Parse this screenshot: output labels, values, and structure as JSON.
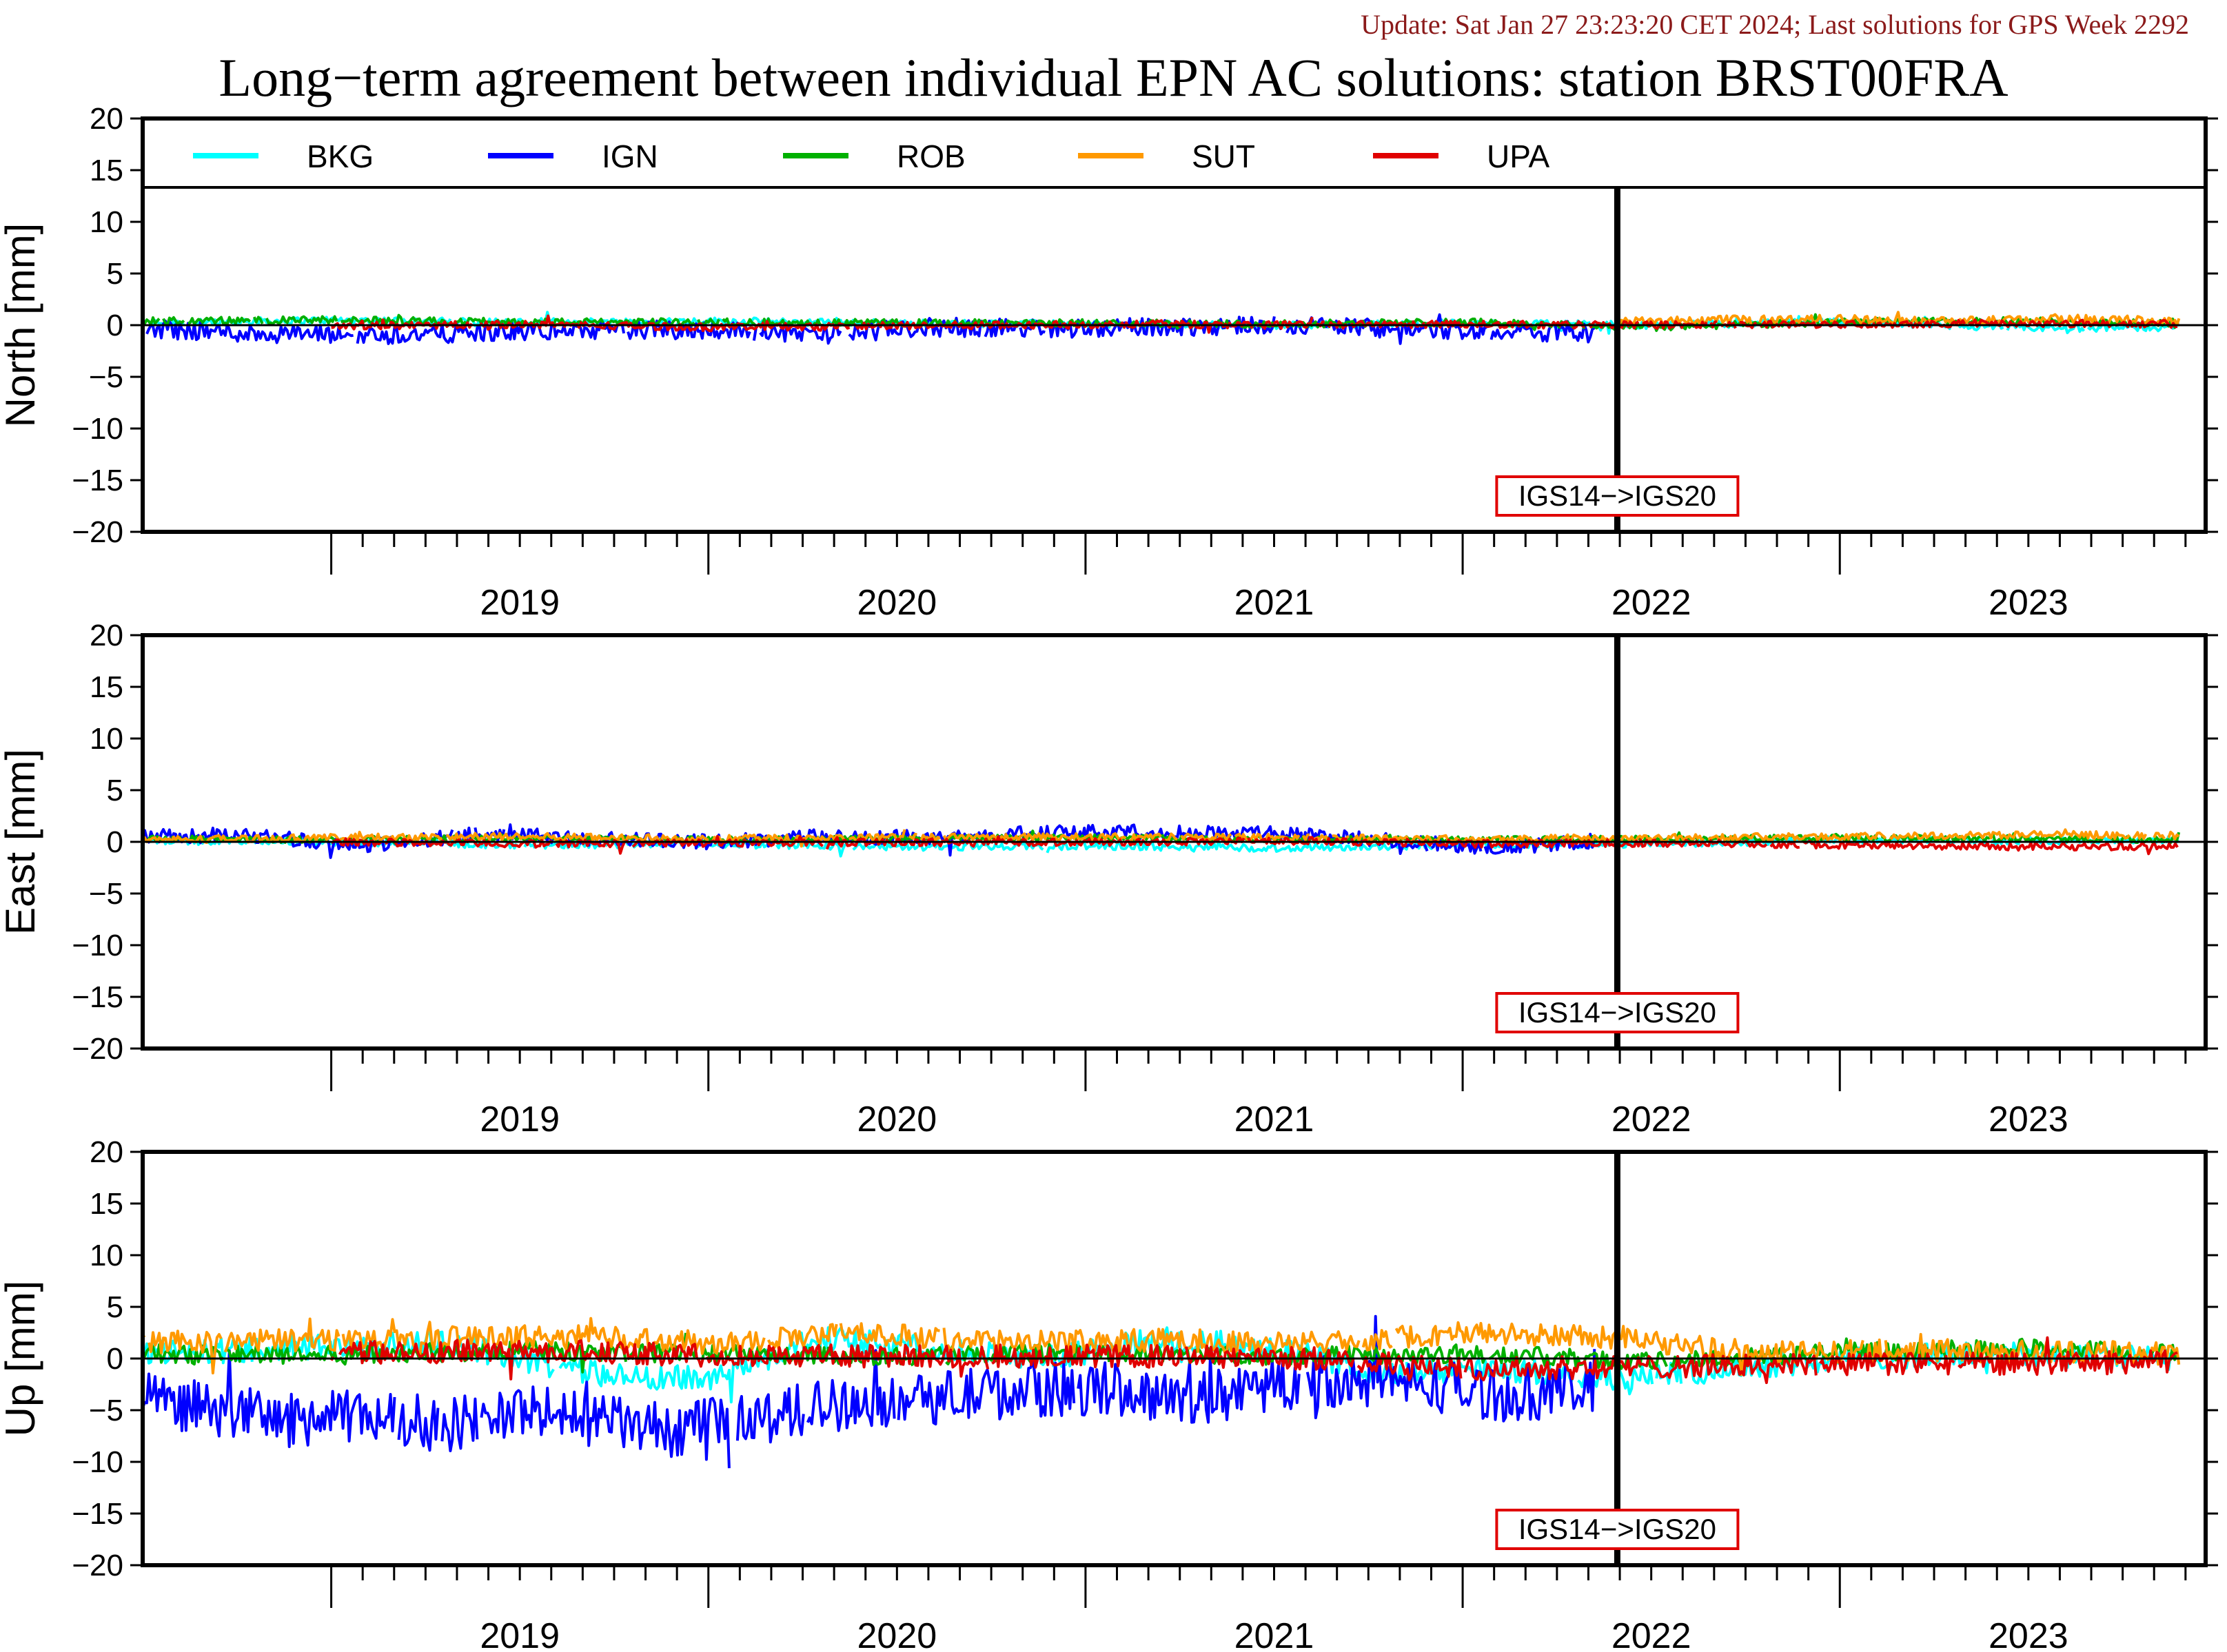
{
  "header": {
    "update": "Update: Sat Jan 27 23:23:20 CET 2024; Last solutions for GPS Week 2292",
    "title": "Long−term agreement between individual EPN AC solutions: station BRST00FRA"
  },
  "colors": {
    "BKG": "#00ffff",
    "IGN": "#0000ff",
    "ROB": "#00b000",
    "SUT": "#ff9900",
    "UPA": "#e00000",
    "annotation": "#e00000"
  },
  "chart_data": {
    "type": "line",
    "x_range": [
      2018.5,
      2023.97
    ],
    "year_labels": [
      "2019",
      "2020",
      "2021",
      "2022",
      "2023"
    ],
    "legend": [
      "BKG",
      "IGN",
      "ROB",
      "SUT",
      "UPA"
    ],
    "legend_placement": "top",
    "frame_change": {
      "x": 2022.41,
      "label": "IGS14−>IGS20"
    },
    "panels": [
      {
        "ylabel": "North [mm]",
        "ylim": [
          -20,
          20
        ],
        "yticks": [
          "20",
          "15",
          "10",
          "5",
          "0",
          "−5",
          "−10",
          "−15",
          "−20"
        ],
        "series": [
          {
            "name": "BKG",
            "x": [
              2018.5,
              2019.0,
              2019.5,
              2020.0,
              2020.5,
              2021.0,
              2021.5,
              2022.0,
              2022.5,
              2023.0,
              2023.5,
              2023.9
            ],
            "values": [
              0.2,
              0.5,
              0.3,
              0.4,
              0.2,
              0.1,
              0.0,
              0.2,
              0.0,
              0.3,
              -0.3,
              -0.2
            ]
          },
          {
            "name": "IGN",
            "x": [
              2018.5,
              2018.8,
              2019.1,
              2019.4,
              2019.7,
              2020.0,
              2020.3,
              2020.6,
              2020.9,
              2021.2,
              2021.5,
              2021.8,
              2022.1,
              2022.35
            ],
            "values": [
              -0.3,
              -0.8,
              -1.0,
              -0.7,
              -0.5,
              -0.4,
              -0.9,
              -0.2,
              -0.3,
              -0.2,
              0.1,
              -0.3,
              -0.6,
              -0.8
            ]
          },
          {
            "name": "ROB",
            "x": [
              2018.5,
              2019.0,
              2019.5,
              2020.0,
              2020.5,
              2021.0,
              2021.5,
              2022.0,
              2022.5,
              2023.0,
              2023.5,
              2023.9
            ],
            "values": [
              0.4,
              0.5,
              0.3,
              0.3,
              0.2,
              0.2,
              0.1,
              0.3,
              -0.2,
              0.3,
              0.4,
              0.1
            ]
          },
          {
            "name": "SUT",
            "x": [
              2022.41,
              2022.7,
              2023.0,
              2023.3,
              2023.6,
              2023.9
            ],
            "values": [
              0.3,
              0.5,
              0.6,
              0.4,
              0.6,
              0.4
            ]
          },
          {
            "name": "UPA",
            "x": [
              2019.0,
              2019.5,
              2020.0,
              2021.2,
              2021.6,
              2022.0,
              2022.5,
              2023.0,
              2023.5,
              2023.9
            ],
            "values": [
              -0.1,
              0.1,
              -0.2,
              0.1,
              0.0,
              0.1,
              0.0,
              0.1,
              0.2,
              0.1
            ]
          }
        ]
      },
      {
        "ylabel": "East [mm]",
        "ylim": [
          -20,
          20
        ],
        "yticks": [
          "20",
          "15",
          "10",
          "5",
          "0",
          "−5",
          "−10",
          "−15",
          "−20"
        ],
        "series": [
          {
            "name": "BKG",
            "x": [
              2018.5,
              2019.0,
              2019.5,
              2020.0,
              2020.5,
              2021.0,
              2021.5,
              2022.0,
              2022.5,
              2023.0,
              2023.5,
              2023.9
            ],
            "values": [
              0.1,
              0.0,
              -0.3,
              -0.2,
              -0.5,
              -0.4,
              -0.6,
              -0.3,
              -0.2,
              0.2,
              0.1,
              0.2
            ]
          },
          {
            "name": "IGN",
            "x": [
              2018.5,
              2018.8,
              2019.1,
              2019.4,
              2019.7,
              2020.0,
              2020.3,
              2020.6,
              2020.9,
              2021.2,
              2021.5,
              2021.8,
              2022.1,
              2022.35
            ],
            "values": [
              0.5,
              0.6,
              -0.4,
              0.8,
              0.3,
              0.0,
              0.5,
              0.4,
              0.9,
              1.0,
              0.8,
              0.2,
              -0.6,
              0.1
            ]
          },
          {
            "name": "ROB",
            "x": [
              2018.5,
              2019.0,
              2019.5,
              2020.0,
              2020.5,
              2021.0,
              2021.5,
              2022.0,
              2022.5,
              2023.0,
              2023.5,
              2023.9
            ],
            "values": [
              0.3,
              0.2,
              0.4,
              0.2,
              0.3,
              0.4,
              0.3,
              0.2,
              0.3,
              0.4,
              0.3,
              0.2
            ]
          },
          {
            "name": "SUT",
            "x": [
              2018.5,
              2019.0,
              2019.5,
              2020.0,
              2020.5,
              2021.0,
              2021.5,
              2022.0,
              2022.5,
              2023.0,
              2023.5,
              2023.9
            ],
            "values": [
              0.2,
              0.4,
              0.5,
              0.3,
              0.4,
              0.5,
              0.4,
              0.3,
              0.4,
              0.5,
              0.7,
              0.6
            ]
          },
          {
            "name": "UPA",
            "x": [
              2019.0,
              2019.5,
              2020.0,
              2021.2,
              2021.6,
              2022.0,
              2022.5,
              2023.0,
              2023.5,
              2023.9
            ],
            "values": [
              0.0,
              -0.2,
              -0.1,
              0.0,
              0.1,
              -0.2,
              -0.1,
              -0.3,
              -0.5,
              -0.4
            ]
          }
        ]
      },
      {
        "ylabel": "Up [mm]",
        "ylim": [
          -20,
          20
        ],
        "yticks": [
          "20",
          "15",
          "10",
          "5",
          "0",
          "−5",
          "−10",
          "−15",
          "−20"
        ],
        "series": [
          {
            "name": "BKG",
            "x": [
              2018.5,
              2018.9,
              2019.3,
              2019.7,
              2020.0,
              2020.3,
              2020.6,
              2020.9,
              2021.2,
              2021.5,
              2021.8,
              2022.1,
              2022.4,
              2022.7,
              2023.0,
              2023.4,
              2023.9
            ],
            "values": [
              0.5,
              1.0,
              1.5,
              -1.5,
              -2.0,
              2.0,
              1.0,
              0.0,
              2.0,
              1.0,
              -1.5,
              -1.0,
              -2.0,
              -1.0,
              0.0,
              0.5,
              0.0
            ]
          },
          {
            "name": "IGN",
            "x": [
              2018.5,
              2018.7,
              2018.9,
              2019.1,
              2019.3,
              2019.5,
              2019.7,
              2019.9,
              2020.1,
              2020.3,
              2020.5,
              2020.7,
              2020.9,
              2021.1,
              2021.3,
              2021.5,
              2021.7,
              2021.9,
              2022.1,
              2022.35
            ],
            "values": [
              -4.0,
              -5.0,
              -6.0,
              -5.5,
              -6.5,
              -5.0,
              -6.0,
              -7.0,
              -6.0,
              -4.5,
              -4.0,
              -3.5,
              -3.0,
              -3.0,
              -4.0,
              -2.5,
              -2.0,
              -2.5,
              -3.5,
              -3.0
            ]
          },
          {
            "name": "ROB",
            "x": [
              2018.5,
              2019.0,
              2019.5,
              2020.0,
              2020.5,
              2021.0,
              2021.5,
              2022.0,
              2022.5,
              2023.0,
              2023.5,
              2023.9
            ],
            "values": [
              0.5,
              0.3,
              0.8,
              0.4,
              0.2,
              0.6,
              0.3,
              0.5,
              -0.3,
              0.6,
              1.0,
              0.4
            ]
          },
          {
            "name": "SUT",
            "x": [
              2018.5,
              2018.9,
              2019.3,
              2019.7,
              2020.0,
              2020.4,
              2020.8,
              2021.2,
              2021.6,
              2022.0,
              2022.4,
              2022.8,
              2023.2,
              2023.6,
              2023.9
            ],
            "values": [
              1.5,
              1.8,
              2.0,
              2.2,
              1.5,
              2.5,
              1.5,
              1.8,
              1.5,
              2.5,
              2.0,
              0.5,
              0.8,
              0.6,
              0.5
            ]
          },
          {
            "name": "UPA",
            "x": [
              2019.0,
              2019.5,
              2020.0,
              2021.2,
              2021.6,
              2022.0,
              2022.5,
              2023.0,
              2023.5,
              2023.9
            ],
            "values": [
              0.5,
              0.8,
              0.3,
              0.2,
              0.0,
              -1.0,
              -0.8,
              -0.5,
              -0.5,
              -0.3
            ]
          }
        ]
      }
    ]
  }
}
